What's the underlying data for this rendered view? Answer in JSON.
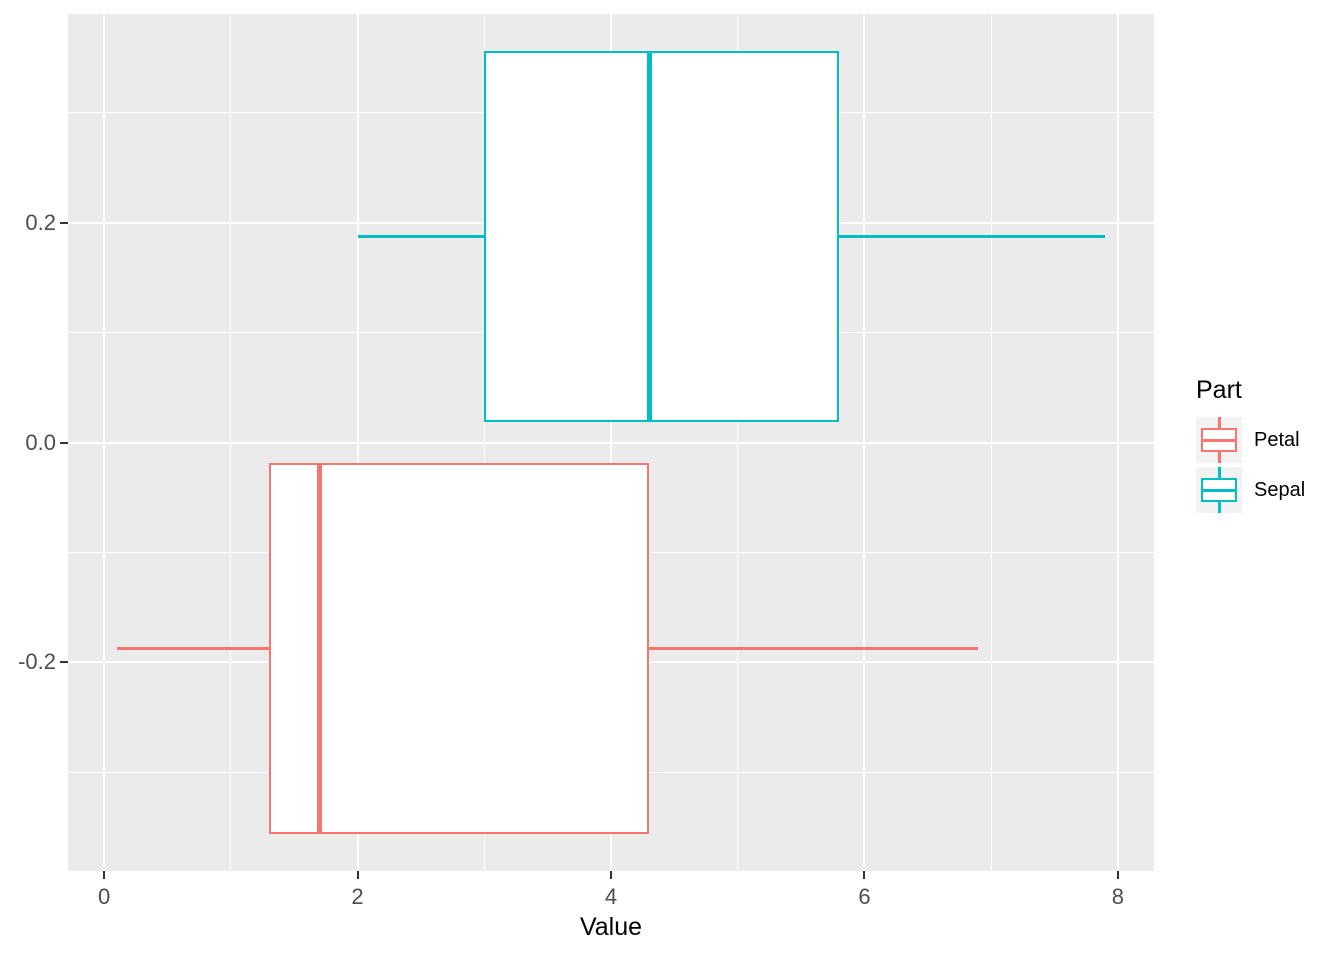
{
  "chart_data": {
    "type": "boxplot",
    "orientation": "horizontal",
    "xlabel": "Value",
    "x_axis": {
      "lim": [
        -0.285,
        8.285
      ],
      "ticks": [
        {
          "label": "0",
          "value": 0
        },
        {
          "label": "2",
          "value": 2
        },
        {
          "label": "4",
          "value": 4
        },
        {
          "label": "6",
          "value": 6
        },
        {
          "label": "8",
          "value": 8
        }
      ],
      "minor": [
        1,
        3,
        5,
        7
      ]
    },
    "y_axis": {
      "lim": [
        -0.39,
        0.39
      ],
      "ticks": [
        {
          "label": "0.2",
          "value": 0.2
        },
        {
          "label": "0.0",
          "value": 0.0
        },
        {
          "label": "-0.2",
          "value": -0.2
        }
      ],
      "minor": [
        0.3,
        0.1,
        -0.1,
        -0.3
      ]
    },
    "series": [
      {
        "name": "Petal",
        "color": "#F8766D",
        "y_center": -0.1875,
        "box_extent": 0.3375,
        "whisker_min": 0.1,
        "q1": 1.3,
        "median": 1.7,
        "q3": 4.3,
        "whisker_max": 6.9
      },
      {
        "name": "Sepal",
        "color": "#00BFC4",
        "y_center": 0.1875,
        "box_extent": 0.3375,
        "whisker_min": 2.0,
        "q1": 3.0,
        "median": 4.3,
        "q3": 5.8,
        "whisker_max": 7.9
      }
    ],
    "legend": {
      "title": "Part",
      "entries": [
        {
          "label": "Petal",
          "color": "#F8766D"
        },
        {
          "label": "Sepal",
          "color": "#00BFC4"
        }
      ]
    },
    "colors": {
      "background": "#FFFFFF",
      "panel_bg": "#EBEBEB",
      "grid": "#FFFFFF",
      "tick": "#333333",
      "tick_label": "#4D4D4D",
      "axis_title": "#000000",
      "legend_key_bg": "#F2F2F2"
    }
  }
}
